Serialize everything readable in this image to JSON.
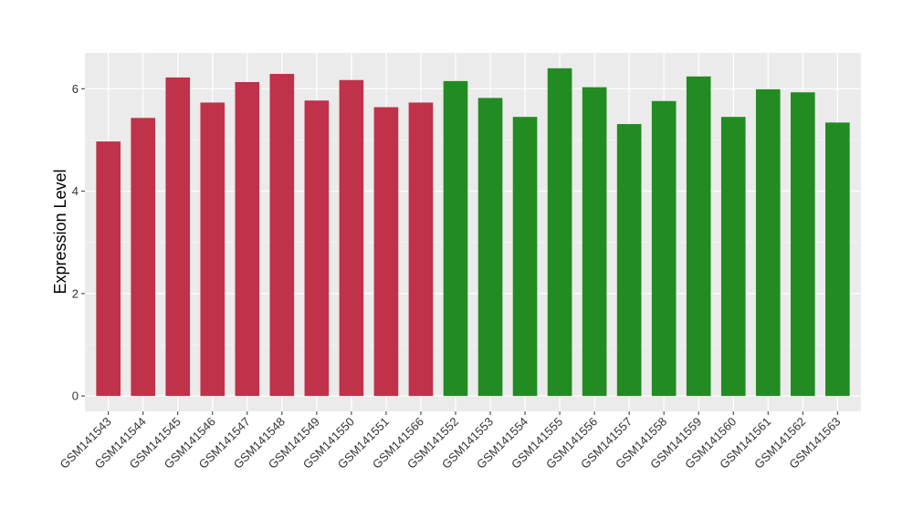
{
  "chart_data": {
    "type": "bar",
    "title": "",
    "xlabel": "",
    "ylabel": "Expression Level",
    "ylim": [
      -0.3,
      6.7
    ],
    "yticks": [
      0,
      2,
      4,
      6
    ],
    "grid": true,
    "categories": [
      "GSM141543",
      "GSM141544",
      "GSM141545",
      "GSM141546",
      "GSM141547",
      "GSM141548",
      "GSM141549",
      "GSM141550",
      "GSM141551",
      "GSM141566",
      "GSM141552",
      "GSM141553",
      "GSM141554",
      "GSM141555",
      "GSM141556",
      "GSM141557",
      "GSM141558",
      "GSM141559",
      "GSM141560",
      "GSM141561",
      "GSM141562",
      "GSM141563"
    ],
    "values": [
      4.97,
      5.43,
      6.22,
      5.73,
      6.13,
      6.29,
      5.77,
      6.17,
      5.64,
      5.73,
      6.15,
      5.82,
      5.45,
      6.4,
      6.03,
      5.31,
      5.76,
      6.24,
      5.45,
      5.99,
      5.93,
      5.34
    ],
    "bar_colors": [
      "#C0314A",
      "#C0314A",
      "#C0314A",
      "#C0314A",
      "#C0314A",
      "#C0314A",
      "#C0314A",
      "#C0314A",
      "#C0314A",
      "#C0314A",
      "#228B22",
      "#228B22",
      "#228B22",
      "#228B22",
      "#228B22",
      "#228B22",
      "#228B22",
      "#228B22",
      "#228B22",
      "#228B22",
      "#228B22",
      "#228B22"
    ],
    "colors": {
      "panel": "#EBEBEB",
      "grid_major": "#FFFFFF",
      "grid_minor": "#F5F5F5"
    }
  }
}
